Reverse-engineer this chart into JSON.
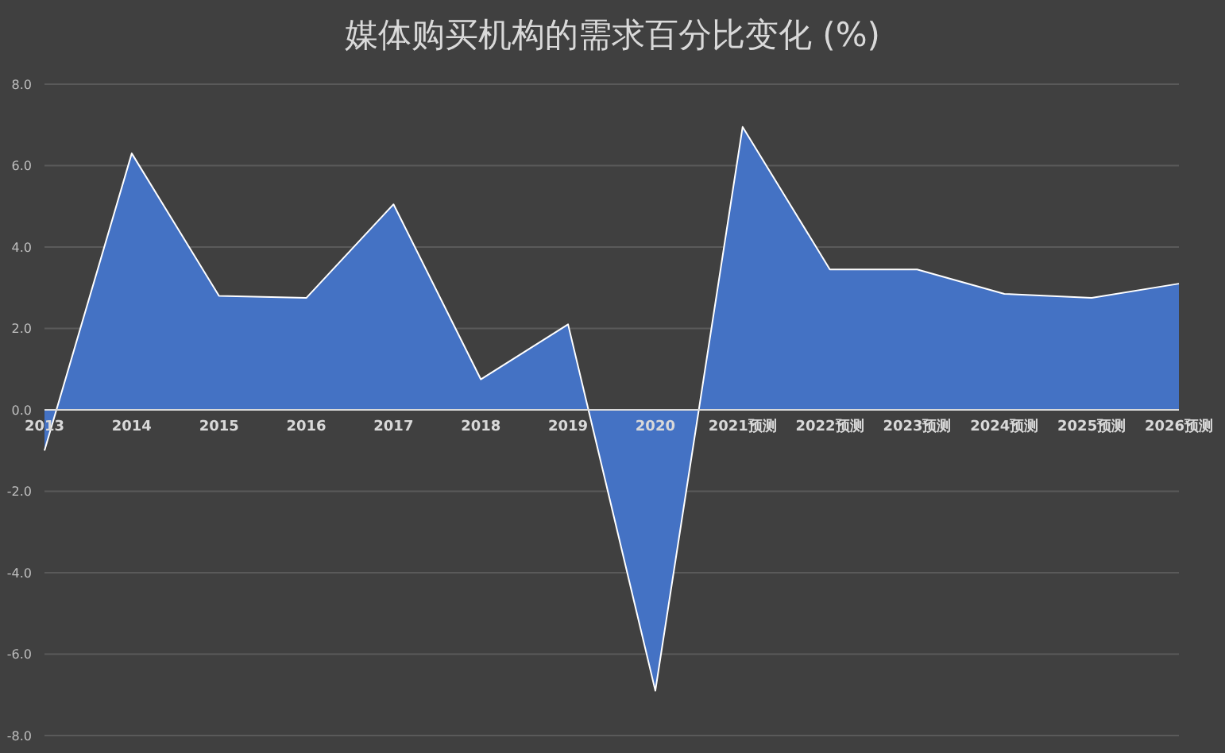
{
  "chart_data": {
    "type": "area",
    "title": "媒体购买机构的需求百分比变化 (%)",
    "categories": [
      "2013",
      "2014",
      "2015",
      "2016",
      "2017",
      "2018",
      "2019",
      "2020",
      "2021预测",
      "2022预测",
      "2023预测",
      "2024预测",
      "2025预测",
      "2026预测"
    ],
    "values": [
      -1.0,
      6.3,
      2.8,
      2.75,
      5.05,
      0.75,
      2.1,
      -6.9,
      6.95,
      3.45,
      3.45,
      2.85,
      2.75,
      3.1
    ],
    "color": "#4472c4",
    "ylim": [
      -8,
      8
    ],
    "yticks": [
      {
        "value": -8,
        "label": "-8.0"
      },
      {
        "value": -6,
        "label": "-6.0"
      },
      {
        "value": -4,
        "label": "-4.0"
      },
      {
        "value": -2,
        "label": "-2.0"
      },
      {
        "value": 0,
        "label": "0.0"
      },
      {
        "value": 2,
        "label": "2.0"
      },
      {
        "value": 4,
        "label": "4.0"
      },
      {
        "value": 6,
        "label": "6.0"
      },
      {
        "value": 8,
        "label": "8.0"
      }
    ],
    "grid": "y"
  }
}
